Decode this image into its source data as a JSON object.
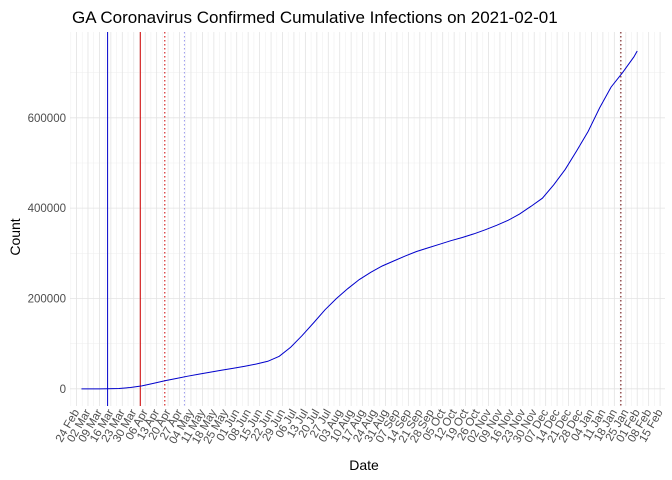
{
  "chart_data": {
    "type": "line",
    "title": "GA Coronavirus Confirmed Cumulative Infections on 2021-02-01",
    "xlabel": "Date",
    "ylabel": "Count",
    "x_axis": "date",
    "xlim": [
      "2020-02-20",
      "2021-02-18"
    ],
    "ylim": [
      -38000,
      790000
    ],
    "y_ticks": [
      0,
      200000,
      400000,
      600000
    ],
    "x_ticks": [
      {
        "date": "2020-02-24",
        "label": "24 Feb"
      },
      {
        "date": "2020-03-02",
        "label": "02 Mar"
      },
      {
        "date": "2020-03-09",
        "label": "09 Mar"
      },
      {
        "date": "2020-03-16",
        "label": "16 Mar"
      },
      {
        "date": "2020-03-23",
        "label": "23 Mar"
      },
      {
        "date": "2020-03-30",
        "label": "30 Mar"
      },
      {
        "date": "2020-04-06",
        "label": "06 Apr"
      },
      {
        "date": "2020-04-13",
        "label": "13 Apr"
      },
      {
        "date": "2020-04-20",
        "label": "20 Apr"
      },
      {
        "date": "2020-04-27",
        "label": "27 Apr"
      },
      {
        "date": "2020-05-04",
        "label": "04 May"
      },
      {
        "date": "2020-05-11",
        "label": "11 May"
      },
      {
        "date": "2020-05-18",
        "label": "18 May"
      },
      {
        "date": "2020-05-25",
        "label": "25 May"
      },
      {
        "date": "2020-06-01",
        "label": "01 Jun"
      },
      {
        "date": "2020-06-08",
        "label": "08 Jun"
      },
      {
        "date": "2020-06-15",
        "label": "15 Jun"
      },
      {
        "date": "2020-06-22",
        "label": "22 Jun"
      },
      {
        "date": "2020-06-29",
        "label": "29 Jun"
      },
      {
        "date": "2020-07-06",
        "label": "06 Jul"
      },
      {
        "date": "2020-07-13",
        "label": "13 Jul"
      },
      {
        "date": "2020-07-20",
        "label": "20 Jul"
      },
      {
        "date": "2020-07-27",
        "label": "27 Jul"
      },
      {
        "date": "2020-08-03",
        "label": "03 Aug"
      },
      {
        "date": "2020-08-10",
        "label": "10 Aug"
      },
      {
        "date": "2020-08-17",
        "label": "17 Aug"
      },
      {
        "date": "2020-08-24",
        "label": "24 Aug"
      },
      {
        "date": "2020-08-31",
        "label": "31 Aug"
      },
      {
        "date": "2020-09-07",
        "label": "07 Sep"
      },
      {
        "date": "2020-09-14",
        "label": "14 Sep"
      },
      {
        "date": "2020-09-21",
        "label": "21 Sep"
      },
      {
        "date": "2020-09-28",
        "label": "28 Sep"
      },
      {
        "date": "2020-10-05",
        "label": "05 Oct"
      },
      {
        "date": "2020-10-12",
        "label": "12 Oct"
      },
      {
        "date": "2020-10-19",
        "label": "19 Oct"
      },
      {
        "date": "2020-10-26",
        "label": "26 Oct"
      },
      {
        "date": "2020-11-02",
        "label": "02 Nov"
      },
      {
        "date": "2020-11-09",
        "label": "09 Nov"
      },
      {
        "date": "2020-11-16",
        "label": "16 Nov"
      },
      {
        "date": "2020-11-23",
        "label": "23 Nov"
      },
      {
        "date": "2020-11-30",
        "label": "30 Nov"
      },
      {
        "date": "2020-12-07",
        "label": "07 Dec"
      },
      {
        "date": "2020-12-14",
        "label": "14 Dec"
      },
      {
        "date": "2020-12-21",
        "label": "21 Dec"
      },
      {
        "date": "2020-12-28",
        "label": "28 Dec"
      },
      {
        "date": "2021-01-04",
        "label": "04 Jan"
      },
      {
        "date": "2021-01-11",
        "label": "11 Jan"
      },
      {
        "date": "2021-01-18",
        "label": "18 Jan"
      },
      {
        "date": "2021-01-25",
        "label": "25 Jan"
      },
      {
        "date": "2021-02-01",
        "label": "01 Feb"
      },
      {
        "date": "2021-02-08",
        "label": "08 Feb"
      },
      {
        "date": "2021-02-15",
        "label": "15 Feb"
      }
    ],
    "grid": true,
    "series": [
      {
        "color": "#0000cc",
        "points": [
          [
            "2020-02-27",
            0
          ],
          [
            "2020-03-09",
            0
          ],
          [
            "2020-03-14",
            300
          ],
          [
            "2020-03-21",
            800
          ],
          [
            "2020-03-28",
            3000
          ],
          [
            "2020-04-04",
            6500
          ],
          [
            "2020-04-11",
            12000
          ],
          [
            "2020-04-18",
            18000
          ],
          [
            "2020-04-25",
            23000
          ],
          [
            "2020-05-02",
            28000
          ],
          [
            "2020-05-09",
            32500
          ],
          [
            "2020-05-16",
            37000
          ],
          [
            "2020-05-23",
            41500
          ],
          [
            "2020-05-30",
            45500
          ],
          [
            "2020-06-06",
            50000
          ],
          [
            "2020-06-13",
            55000
          ],
          [
            "2020-06-20",
            61000
          ],
          [
            "2020-06-27",
            72000
          ],
          [
            "2020-07-04",
            92000
          ],
          [
            "2020-07-11",
            118000
          ],
          [
            "2020-07-18",
            146000
          ],
          [
            "2020-07-25",
            175000
          ],
          [
            "2020-08-01",
            200000
          ],
          [
            "2020-08-08",
            222000
          ],
          [
            "2020-08-15",
            242000
          ],
          [
            "2020-08-22",
            258000
          ],
          [
            "2020-08-29",
            272000
          ],
          [
            "2020-09-05",
            283000
          ],
          [
            "2020-09-12",
            294000
          ],
          [
            "2020-09-19",
            304000
          ],
          [
            "2020-09-26",
            312000
          ],
          [
            "2020-10-03",
            320000
          ],
          [
            "2020-10-10",
            328000
          ],
          [
            "2020-10-17",
            335000
          ],
          [
            "2020-10-24",
            343000
          ],
          [
            "2020-10-31",
            352000
          ],
          [
            "2020-11-07",
            362000
          ],
          [
            "2020-11-14",
            373000
          ],
          [
            "2020-11-21",
            387000
          ],
          [
            "2020-11-28",
            404000
          ],
          [
            "2020-12-05",
            422000
          ],
          [
            "2020-12-12",
            452000
          ],
          [
            "2020-12-19",
            486000
          ],
          [
            "2020-12-26",
            527000
          ],
          [
            "2021-01-02",
            570000
          ],
          [
            "2021-01-09",
            622000
          ],
          [
            "2021-01-16",
            668000
          ],
          [
            "2021-01-23",
            700000
          ],
          [
            "2021-01-30",
            735000
          ],
          [
            "2021-02-01",
            748000
          ]
        ]
      }
    ],
    "reference_lines": [
      {
        "date": "2020-03-14",
        "color": "#0000cc",
        "style": "solid"
      },
      {
        "date": "2020-04-03",
        "color": "#cc0000",
        "style": "solid"
      },
      {
        "date": "2020-04-18",
        "color": "#cc0000",
        "style": "dotted"
      },
      {
        "date": "2020-04-30",
        "color": "#9999ee",
        "style": "dotted"
      },
      {
        "date": "2021-01-22",
        "color": "#660000",
        "style": "dotted"
      }
    ]
  }
}
